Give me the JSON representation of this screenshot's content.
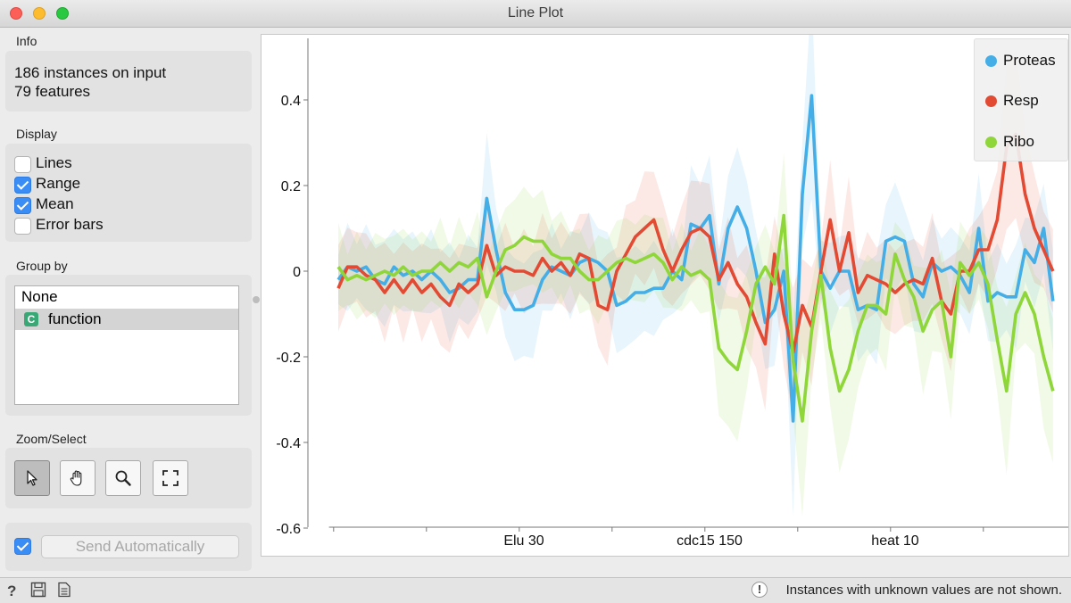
{
  "window": {
    "title": "Line Plot"
  },
  "info": {
    "section_label": "Info",
    "instances_text": "186 instances on input",
    "features_text": "79 features"
  },
  "display": {
    "section_label": "Display",
    "options": [
      {
        "label": "Lines",
        "checked": false
      },
      {
        "label": "Range",
        "checked": true
      },
      {
        "label": "Mean",
        "checked": true
      },
      {
        "label": "Error bars",
        "checked": false
      }
    ]
  },
  "group_by": {
    "section_label": "Group by",
    "items": [
      {
        "label": "None",
        "selected": false
      },
      {
        "label": "function",
        "selected": true,
        "type_tag": "C"
      }
    ]
  },
  "zoom_select": {
    "section_label": "Zoom/Select",
    "tools": [
      {
        "name": "select-tool",
        "icon": "arrow-pointer-icon",
        "active": true
      },
      {
        "name": "pan-tool",
        "icon": "hand-icon",
        "active": false
      },
      {
        "name": "zoom-tool",
        "icon": "magnifier-icon",
        "active": false
      },
      {
        "name": "reset-zoom-tool",
        "icon": "fit-frame-icon",
        "active": false
      }
    ]
  },
  "send": {
    "checked": true,
    "button_label": "Send Automatically"
  },
  "status": {
    "message": "Instances with unknown values are not shown."
  },
  "chart_data": {
    "type": "line",
    "title": "",
    "xlabel": "",
    "ylabel": "",
    "x_tick_labels": [
      "Elu 30",
      "cdc15 150",
      "heat 10"
    ],
    "x_tick_positions": [
      20,
      40,
      60
    ],
    "y_ticks": [
      -0.6,
      -0.4,
      -0.2,
      0,
      0.2,
      0.4
    ],
    "ylim": [
      -0.6,
      0.55
    ],
    "xlim": [
      -1,
      79
    ],
    "legend_position": "top-right",
    "range_bands_shown": true,
    "series": [
      {
        "name": "Proteas",
        "color": "#45aee6",
        "values": [
          -0.02,
          0.01,
          0.0,
          0.01,
          -0.02,
          -0.03,
          0.01,
          -0.01,
          0.0,
          -0.02,
          0.0,
          -0.02,
          -0.05,
          -0.04,
          -0.02,
          -0.02,
          0.17,
          0.05,
          -0.05,
          -0.09,
          -0.09,
          -0.08,
          -0.02,
          0.01,
          0.0,
          -0.01,
          0.02,
          0.03,
          0.02,
          0.0,
          -0.08,
          -0.07,
          -0.05,
          -0.05,
          -0.04,
          -0.04,
          0.0,
          -0.02,
          0.11,
          0.1,
          0.13,
          -0.03,
          0.1,
          0.15,
          0.1,
          0.0,
          -0.12,
          -0.09,
          0.0,
          -0.35,
          0.18,
          0.41,
          0.0,
          -0.04,
          0.0,
          0.0,
          -0.09,
          -0.08,
          -0.09,
          0.07,
          0.08,
          0.07,
          -0.03,
          -0.06,
          0.02,
          0.0,
          0.01,
          -0.01,
          -0.05,
          0.1,
          -0.07,
          -0.05,
          -0.06,
          -0.06,
          0.05,
          0.02,
          0.1,
          -0.07
        ]
      },
      {
        "name": "Resp",
        "color": "#e34a33",
        "values": [
          -0.04,
          0.01,
          0.01,
          -0.01,
          -0.02,
          -0.05,
          -0.02,
          -0.05,
          -0.02,
          -0.05,
          -0.03,
          -0.06,
          -0.08,
          -0.03,
          -0.05,
          -0.03,
          0.06,
          -0.01,
          0.01,
          0.0,
          0.0,
          -0.01,
          0.03,
          0.0,
          0.02,
          -0.01,
          0.04,
          0.03,
          -0.08,
          -0.09,
          0.0,
          0.04,
          0.08,
          0.1,
          0.12,
          0.05,
          0.0,
          0.05,
          0.09,
          0.1,
          0.08,
          -0.02,
          0.02,
          -0.03,
          -0.06,
          -0.12,
          -0.17,
          0.04,
          -0.1,
          -0.19,
          -0.08,
          -0.13,
          0.0,
          0.12,
          0.0,
          0.09,
          -0.05,
          -0.01,
          -0.02,
          -0.03,
          -0.05,
          -0.03,
          -0.02,
          -0.03,
          0.03,
          -0.07,
          -0.1,
          0.0,
          0.0,
          0.05,
          0.05,
          0.12,
          0.29,
          0.32,
          0.18,
          0.1,
          0.05,
          0.0
        ]
      },
      {
        "name": "Ribo",
        "color": "#8fd63a",
        "values": [
          0.01,
          -0.02,
          -0.01,
          -0.02,
          -0.01,
          0.0,
          -0.01,
          0.01,
          -0.01,
          0.0,
          0.0,
          0.02,
          0.0,
          0.02,
          0.01,
          0.03,
          -0.06,
          0.0,
          0.05,
          0.06,
          0.08,
          0.07,
          0.07,
          0.04,
          0.03,
          0.03,
          0.0,
          -0.02,
          -0.02,
          0.0,
          0.02,
          0.03,
          0.02,
          0.03,
          0.04,
          0.02,
          -0.02,
          0.01,
          -0.01,
          0.0,
          -0.02,
          -0.18,
          -0.21,
          -0.23,
          -0.14,
          -0.03,
          0.01,
          -0.03,
          0.13,
          -0.21,
          -0.35,
          -0.14,
          -0.01,
          -0.18,
          -0.28,
          -0.23,
          -0.14,
          -0.08,
          -0.08,
          -0.1,
          0.04,
          -0.02,
          -0.06,
          -0.14,
          -0.09,
          -0.07,
          -0.2,
          0.02,
          -0.01,
          0.02,
          -0.03,
          -0.16,
          -0.28,
          -0.1,
          -0.05,
          -0.1,
          -0.2,
          -0.28
        ]
      }
    ]
  }
}
